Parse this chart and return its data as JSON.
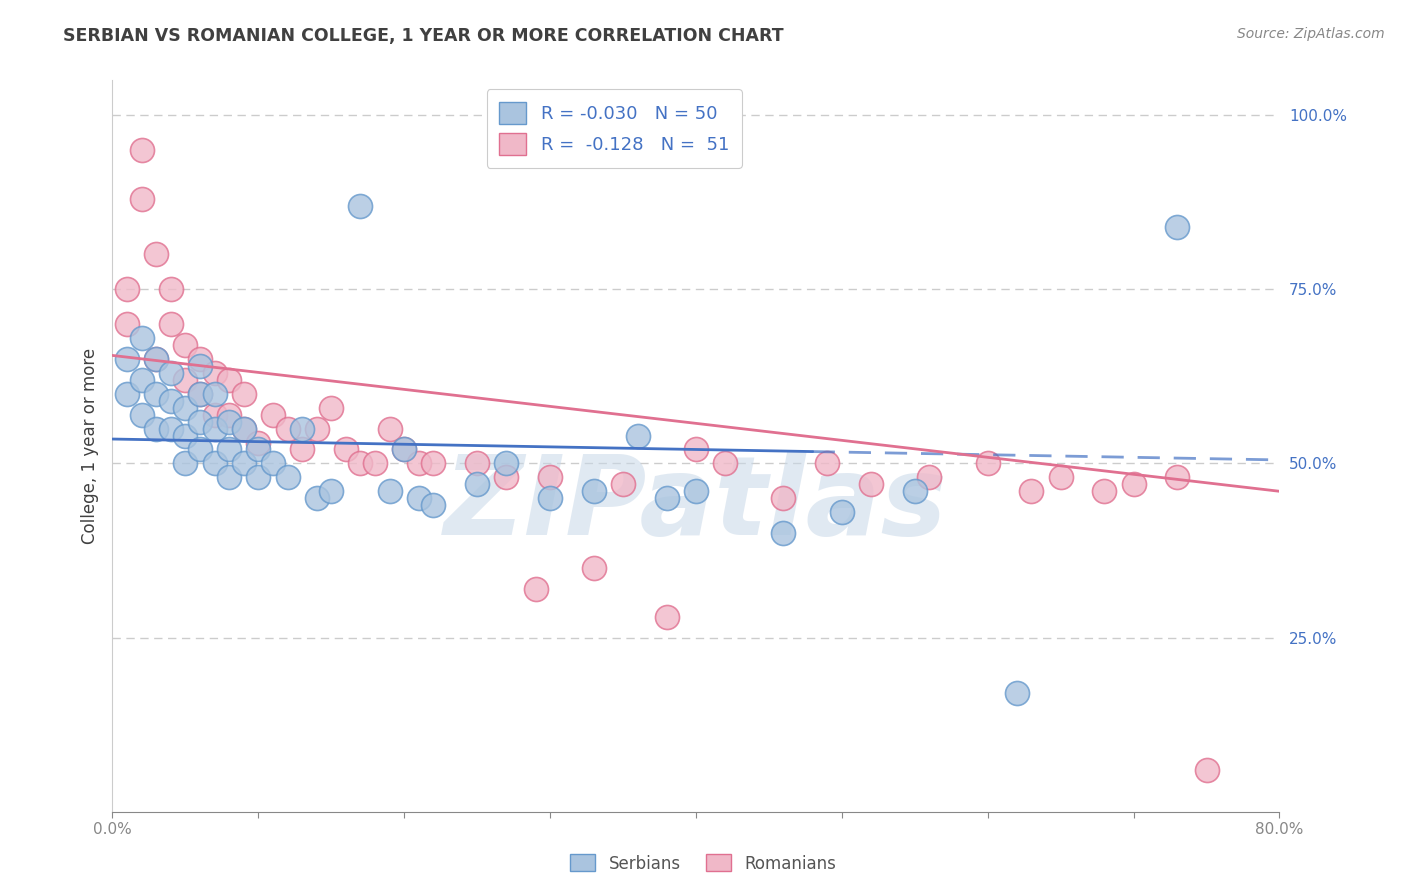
{
  "title": "SERBIAN VS ROMANIAN COLLEGE, 1 YEAR OR MORE CORRELATION CHART",
  "source": "Source: ZipAtlas.com",
  "ylabel": "College, 1 year or more",
  "xlim": [
    0.0,
    0.8
  ],
  "ylim": [
    0.0,
    1.05
  ],
  "xtick_positions": [
    0.0,
    0.1,
    0.2,
    0.3,
    0.4,
    0.5,
    0.6,
    0.7,
    0.8
  ],
  "xtick_labels": [
    "0.0%",
    "",
    "",
    "",
    "",
    "",
    "",
    "",
    "80.0%"
  ],
  "ytick_positions": [
    0.25,
    0.5,
    0.75,
    1.0
  ],
  "ytick_labels": [
    "25.0%",
    "50.0%",
    "75.0%",
    "100.0%"
  ],
  "serbian_color": "#aac4df",
  "romanian_color": "#f0b8c8",
  "serbian_edge": "#6699cc",
  "romanian_edge": "#e07090",
  "trend_serbian_color": "#4472c4",
  "trend_romanian_color": "#e07090",
  "R_serbian": -0.03,
  "N_serbian": 50,
  "R_romanian": -0.128,
  "N_romanian": 51,
  "watermark": "ZIPatlas",
  "watermark_color": "#c8d8e8",
  "background_color": "#ffffff",
  "grid_color": "#cccccc",
  "title_color": "#404040",
  "label_color": "#4472c4",
  "serbian_x": [
    0.01,
    0.01,
    0.02,
    0.02,
    0.02,
    0.03,
    0.03,
    0.03,
    0.04,
    0.04,
    0.04,
    0.05,
    0.05,
    0.05,
    0.06,
    0.06,
    0.06,
    0.06,
    0.07,
    0.07,
    0.07,
    0.08,
    0.08,
    0.08,
    0.09,
    0.09,
    0.1,
    0.1,
    0.11,
    0.12,
    0.13,
    0.14,
    0.15,
    0.17,
    0.19,
    0.2,
    0.21,
    0.22,
    0.25,
    0.27,
    0.3,
    0.33,
    0.36,
    0.38,
    0.4,
    0.46,
    0.5,
    0.55,
    0.62,
    0.73
  ],
  "serbian_y": [
    0.6,
    0.65,
    0.57,
    0.62,
    0.68,
    0.55,
    0.6,
    0.65,
    0.55,
    0.59,
    0.63,
    0.5,
    0.54,
    0.58,
    0.52,
    0.56,
    0.6,
    0.64,
    0.5,
    0.55,
    0.6,
    0.48,
    0.52,
    0.56,
    0.5,
    0.55,
    0.48,
    0.52,
    0.5,
    0.48,
    0.55,
    0.45,
    0.46,
    0.87,
    0.46,
    0.52,
    0.45,
    0.44,
    0.47,
    0.5,
    0.45,
    0.46,
    0.54,
    0.45,
    0.46,
    0.4,
    0.43,
    0.46,
    0.17,
    0.84
  ],
  "romanian_x": [
    0.01,
    0.01,
    0.02,
    0.02,
    0.03,
    0.03,
    0.04,
    0.04,
    0.05,
    0.05,
    0.06,
    0.06,
    0.07,
    0.07,
    0.08,
    0.08,
    0.09,
    0.09,
    0.1,
    0.11,
    0.12,
    0.13,
    0.14,
    0.15,
    0.16,
    0.17,
    0.18,
    0.19,
    0.2,
    0.21,
    0.22,
    0.25,
    0.27,
    0.29,
    0.3,
    0.33,
    0.35,
    0.38,
    0.4,
    0.42,
    0.46,
    0.49,
    0.52,
    0.56,
    0.6,
    0.63,
    0.65,
    0.68,
    0.7,
    0.73,
    0.75
  ],
  "romanian_y": [
    0.7,
    0.75,
    0.95,
    0.88,
    0.8,
    0.65,
    0.7,
    0.75,
    0.62,
    0.67,
    0.6,
    0.65,
    0.57,
    0.63,
    0.57,
    0.62,
    0.55,
    0.6,
    0.53,
    0.57,
    0.55,
    0.52,
    0.55,
    0.58,
    0.52,
    0.5,
    0.5,
    0.55,
    0.52,
    0.5,
    0.5,
    0.5,
    0.48,
    0.32,
    0.48,
    0.35,
    0.47,
    0.28,
    0.52,
    0.5,
    0.45,
    0.5,
    0.47,
    0.48,
    0.5,
    0.46,
    0.48,
    0.46,
    0.47,
    0.48,
    0.06
  ]
}
